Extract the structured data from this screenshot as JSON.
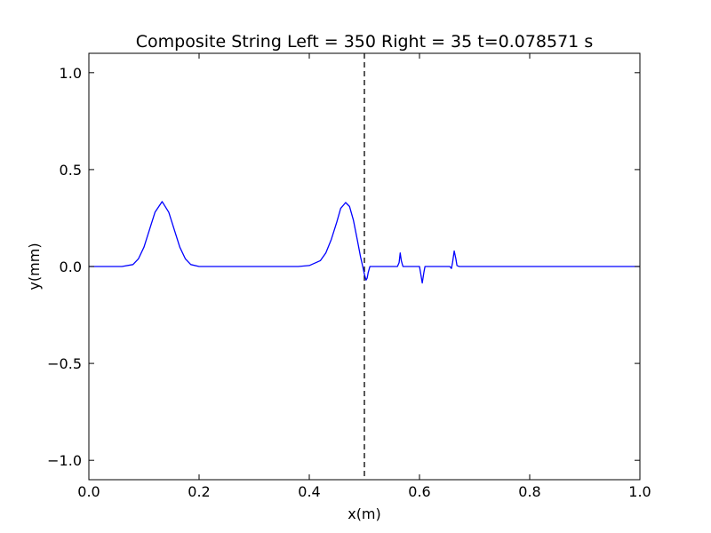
{
  "chart_data": {
    "type": "line",
    "title": "Composite String Left = 350 Right = 35  t=0.078571 s",
    "xlabel": "x(m)",
    "ylabel": "y(mm)",
    "xlim": [
      0.0,
      1.0
    ],
    "ylim": [
      -1.1,
      1.1
    ],
    "x_ticks": [
      0.0,
      0.2,
      0.4,
      0.6,
      0.8,
      1.0
    ],
    "x_tick_labels": [
      "0.0",
      "0.2",
      "0.4",
      "0.6",
      "0.8",
      "1.0"
    ],
    "y_ticks": [
      -1.0,
      -0.5,
      0.0,
      0.5,
      1.0
    ],
    "y_tick_labels": [
      "−1.0",
      "−0.5",
      "0.0",
      "0.5",
      "1.0"
    ],
    "grid": false,
    "legend": "none",
    "boundary_line": {
      "x": 0.5,
      "style": "dashed",
      "color": "#000000"
    },
    "series": [
      {
        "color": "#0000ff",
        "x": [
          0.0,
          0.06,
          0.08,
          0.09,
          0.1,
          0.11,
          0.12,
          0.133,
          0.145,
          0.155,
          0.165,
          0.175,
          0.185,
          0.2,
          0.22,
          0.3,
          0.38,
          0.4,
          0.42,
          0.43,
          0.44,
          0.45,
          0.457,
          0.466,
          0.473,
          0.48,
          0.487,
          0.493,
          0.497,
          0.5,
          0.503,
          0.505,
          0.507,
          0.51,
          0.515,
          0.56,
          0.563,
          0.565,
          0.567,
          0.57,
          0.6,
          0.603,
          0.605,
          0.608,
          0.61,
          0.615,
          0.655,
          0.658,
          0.66,
          0.663,
          0.666,
          0.668,
          0.672,
          0.68,
          0.75,
          0.85,
          1.0
        ],
        "y": [
          0.0,
          0.0,
          0.01,
          0.04,
          0.1,
          0.19,
          0.28,
          0.335,
          0.28,
          0.19,
          0.1,
          0.04,
          0.01,
          0.0,
          0.0,
          0.0,
          0.0,
          0.005,
          0.03,
          0.07,
          0.14,
          0.23,
          0.3,
          0.33,
          0.31,
          0.24,
          0.14,
          0.05,
          0.0,
          -0.04,
          -0.07,
          -0.06,
          -0.03,
          0.0,
          0.0,
          0.0,
          0.02,
          0.07,
          0.03,
          0.0,
          0.0,
          -0.05,
          -0.085,
          -0.03,
          0.0,
          0.0,
          0.0,
          -0.01,
          0.02,
          0.08,
          0.04,
          0.005,
          0.0,
          0.0,
          0.0,
          0.0,
          0.0
        ]
      }
    ]
  }
}
